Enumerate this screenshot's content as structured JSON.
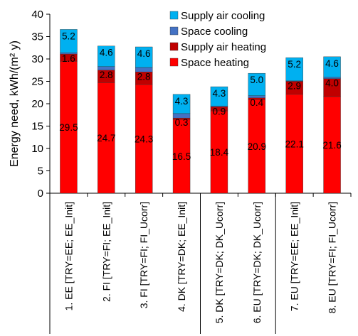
{
  "chart_data": {
    "type": "bar",
    "stacked": true,
    "ylabel": "Energy need, kWh/(m² y)",
    "ylim": [
      0,
      40
    ],
    "yticks": [
      0,
      5,
      10,
      15,
      20,
      25,
      30,
      35,
      40
    ],
    "grid": false,
    "legend_position": "top-right",
    "categories": [
      "1. EE [TRY=EE; EE_Init]",
      "2. FI [TRY=FI; EE_Init]",
      "3. FI [TRY=FI; FI_Ucorr]",
      "4. DK [TRY=DK; EE_Init]",
      "5. DK [TRY=DK; DK_Ucorr]",
      "6. EU [TRY=DK; DK_Ucorr]",
      "7. EU [TRY=EE; EE_Init]",
      "8. EU [TRY=FI; FI_Ucorr]"
    ],
    "group_separators_after": [
      3,
      5
    ],
    "series": [
      {
        "name": "Space heating",
        "color": "#ff0000",
        "values": [
          29.5,
          24.7,
          24.3,
          16.5,
          18.4,
          20.9,
          22.1,
          21.6
        ],
        "labels": [
          "29.5",
          "24.7",
          "24.3",
          "16.5",
          "18.4",
          "20.9",
          "22.1",
          "21.6"
        ]
      },
      {
        "name": "Supply air heating",
        "color": "#c00000",
        "values": [
          1.6,
          2.8,
          2.8,
          0.3,
          0.9,
          0.4,
          2.9,
          4.0
        ],
        "labels": [
          "1.6",
          "2.8",
          "2.8",
          "0.3",
          "0.9",
          "0.4",
          "2.9",
          "4.0"
        ]
      },
      {
        "name": "Space cooling",
        "color": "#4472c4",
        "values": [
          0.3,
          0.8,
          1.0,
          1.0,
          0.2,
          0.5,
          0.1,
          0.3
        ],
        "labels": [
          "",
          "",
          "",
          "",
          "",
          "",
          "",
          ""
        ]
      },
      {
        "name": "Supply air cooling",
        "color": "#00b0f0",
        "values": [
          5.2,
          4.6,
          4.6,
          4.3,
          4.3,
          5.0,
          5.2,
          4.6
        ],
        "labels": [
          "5.2",
          "4.6",
          "4.6",
          "4.3",
          "4.3",
          "5.0",
          "5.2",
          "4.6"
        ]
      }
    ],
    "legend_order": [
      "Supply air cooling",
      "Space cooling",
      "Supply air heating",
      "Space heating"
    ]
  }
}
